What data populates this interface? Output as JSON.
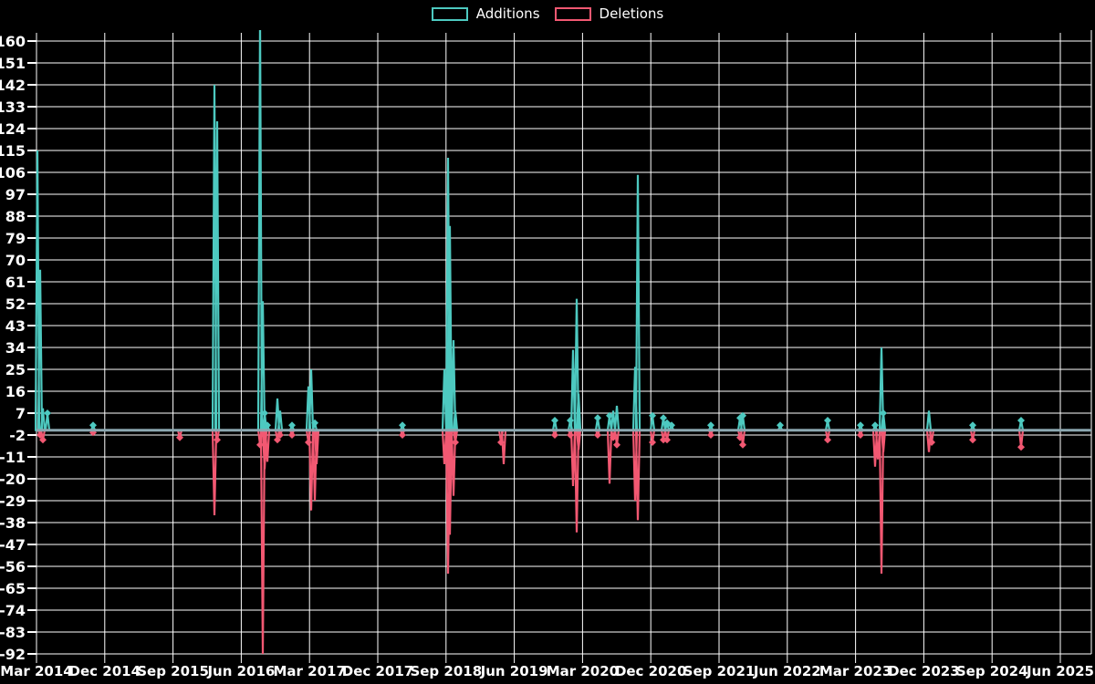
{
  "chart_data": {
    "type": "line",
    "title": "",
    "legend_position": "top-center",
    "grid": true,
    "background": "#000000",
    "colors": {
      "additions": "#4dc9c0",
      "deletions": "#f25872",
      "gridline": "#ffffff",
      "zero_line": "#8ca7b0",
      "text": "#ffffff"
    },
    "legend": [
      {
        "label": "Additions",
        "color": "#4dc9c0"
      },
      {
        "label": "Deletions",
        "color": "#f25872"
      }
    ],
    "xlabel": "",
    "ylabel": "",
    "ylim": [
      -92,
      164
    ],
    "yticks": [
      160,
      151,
      142,
      133,
      124,
      115,
      106,
      97,
      88,
      79,
      70,
      61,
      52,
      43,
      34,
      25,
      16,
      7,
      -2,
      -11,
      -20,
      -29,
      -38,
      -47,
      -56,
      -65,
      -74,
      -83,
      -92
    ],
    "xlabels": [
      "Mar 2014",
      "Dec 2014",
      "Sep 2015",
      "Jun 2016",
      "Mar 2017",
      "Dec 2017",
      "Sep 2018",
      "Jun 2019",
      "Mar 2020",
      "Dec 2020",
      "Sep 2021",
      "Jun 2022",
      "Mar 2023",
      "Dec 2023",
      "Sep 2024",
      "Jun 2025"
    ],
    "series": [
      {
        "name": "Additions",
        "color": "#4dc9c0",
        "values_note": "weekly additions; clipped spike ~170 exceeds axis top",
        "points": [
          {
            "date": "Mar 2014",
            "x": 41,
            "y": 115
          },
          {
            "date": "Apr 2014",
            "x": 44,
            "y": 66
          },
          {
            "date": "Apr 2014",
            "x": 47,
            "y": 9
          },
          {
            "date": "May 2014",
            "x": 52,
            "y": 7
          },
          {
            "date": "Nov 2014",
            "x": 102,
            "y": 2
          },
          {
            "date": "Oct 2015",
            "x": 197,
            "y": 0
          },
          {
            "date": "Mar 2016",
            "x": 235,
            "y": 142
          },
          {
            "date": "Mar 2016",
            "x": 238,
            "y": 127
          },
          {
            "date": "Sep 2016",
            "x": 285,
            "y": 170
          },
          {
            "date": "Sep 2016",
            "x": 288,
            "y": 53
          },
          {
            "date": "Oct 2016",
            "x": 290,
            "y": 7
          },
          {
            "date": "Oct 2016",
            "x": 293,
            "y": 2
          },
          {
            "date": "Nov 2016",
            "x": 304,
            "y": 13
          },
          {
            "date": "Nov 2016",
            "x": 307,
            "y": 8
          },
          {
            "date": "Jan 2017",
            "x": 320,
            "y": 2
          },
          {
            "date": "Feb 2017",
            "x": 338,
            "y": 18
          },
          {
            "date": "Mar 2017",
            "x": 341,
            "y": 25
          },
          {
            "date": "Mar 2017",
            "x": 345,
            "y": 3
          },
          {
            "date": "Feb 2018",
            "x": 441,
            "y": 2
          },
          {
            "date": "Aug 2018",
            "x": 487,
            "y": 25
          },
          {
            "date": "Sep 2018",
            "x": 491,
            "y": 112
          },
          {
            "date": "Sep 2018",
            "x": 493,
            "y": 84
          },
          {
            "date": "Sep 2018",
            "x": 497,
            "y": 37
          },
          {
            "date": "Oct 2018",
            "x": 499,
            "y": 8
          },
          {
            "date": "Nov 2019",
            "x": 608,
            "y": 4
          },
          {
            "date": "Feb 2020",
            "x": 625,
            "y": 4
          },
          {
            "date": "Feb 2020",
            "x": 628,
            "y": 33
          },
          {
            "date": "Mar 2020",
            "x": 632,
            "y": 54
          },
          {
            "date": "Mar 2020",
            "x": 634,
            "y": 15
          },
          {
            "date": "May 2020",
            "x": 655,
            "y": 5
          },
          {
            "date": "Jul 2020",
            "x": 668,
            "y": 6
          },
          {
            "date": "Jul 2020",
            "x": 672,
            "y": 8
          },
          {
            "date": "Jul 2020",
            "x": 676,
            "y": 10
          },
          {
            "date": "Oct 2020",
            "x": 696,
            "y": 26
          },
          {
            "date": "Oct 2020",
            "x": 699,
            "y": 105
          },
          {
            "date": "Dec 2020",
            "x": 715,
            "y": 6
          },
          {
            "date": "Jan 2021",
            "x": 727,
            "y": 5
          },
          {
            "date": "Feb 2021",
            "x": 731,
            "y": 3
          },
          {
            "date": "Feb 2021",
            "x": 736,
            "y": 2
          },
          {
            "date": "Jul 2021",
            "x": 779,
            "y": 2
          },
          {
            "date": "Oct 2021",
            "x": 811,
            "y": 5
          },
          {
            "date": "Nov 2021",
            "x": 814,
            "y": 6
          },
          {
            "date": "Jun 2022",
            "x": 855,
            "y": 2
          },
          {
            "date": "Nov 2022",
            "x": 907,
            "y": 4
          },
          {
            "date": "Apr 2023",
            "x": 943,
            "y": 2
          },
          {
            "date": "May 2023",
            "x": 959,
            "y": 2
          },
          {
            "date": "Jun 2023",
            "x": 966,
            "y": 34
          },
          {
            "date": "Jun 2023",
            "x": 968,
            "y": 7
          },
          {
            "date": "Jan 2024",
            "x": 1018,
            "y": 8
          },
          {
            "date": "Jul 2024",
            "x": 1066,
            "y": 2
          },
          {
            "date": "Jan 2025",
            "x": 1119,
            "y": 4
          }
        ]
      },
      {
        "name": "Deletions",
        "color": "#f25872",
        "values_note": "weekly deletions (negative)",
        "points": [
          {
            "date": "Apr 2014",
            "x": 44,
            "y": -2
          },
          {
            "date": "Apr 2014",
            "x": 47,
            "y": -4
          },
          {
            "date": "Nov 2014",
            "x": 102,
            "y": -1
          },
          {
            "date": "Oct 2015",
            "x": 197,
            "y": -3
          },
          {
            "date": "Mar 2016",
            "x": 235,
            "y": -35
          },
          {
            "date": "Mar 2016",
            "x": 238,
            "y": -4
          },
          {
            "date": "Sep 2016",
            "x": 285,
            "y": -6
          },
          {
            "date": "Sep 2016",
            "x": 288,
            "y": -92
          },
          {
            "date": "Oct 2016",
            "x": 290,
            "y": -16
          },
          {
            "date": "Oct 2016",
            "x": 293,
            "y": -13
          },
          {
            "date": "Nov 2016",
            "x": 304,
            "y": -4
          },
          {
            "date": "Nov 2016",
            "x": 307,
            "y": -2
          },
          {
            "date": "Jan 2017",
            "x": 320,
            "y": -2
          },
          {
            "date": "Feb 2017",
            "x": 338,
            "y": -5
          },
          {
            "date": "Mar 2017",
            "x": 341,
            "y": -33
          },
          {
            "date": "Mar 2017",
            "x": 345,
            "y": -29
          },
          {
            "date": "Mar 2017",
            "x": 347,
            "y": -14
          },
          {
            "date": "Feb 2018",
            "x": 441,
            "y": -2
          },
          {
            "date": "Aug 2018",
            "x": 487,
            "y": -14
          },
          {
            "date": "Sep 2018",
            "x": 491,
            "y": -59
          },
          {
            "date": "Sep 2018",
            "x": 493,
            "y": -43
          },
          {
            "date": "Sep 2018",
            "x": 497,
            "y": -27
          },
          {
            "date": "Oct 2018",
            "x": 499,
            "y": -5
          },
          {
            "date": "Apr 2019",
            "x": 549,
            "y": -5
          },
          {
            "date": "Apr 2019",
            "x": 552,
            "y": -14
          },
          {
            "date": "Nov 2019",
            "x": 608,
            "y": -2
          },
          {
            "date": "Feb 2020",
            "x": 625,
            "y": -2
          },
          {
            "date": "Feb 2020",
            "x": 628,
            "y": -23
          },
          {
            "date": "Mar 2020",
            "x": 632,
            "y": -42
          },
          {
            "date": "Mar 2020",
            "x": 634,
            "y": -8
          },
          {
            "date": "May 2020",
            "x": 655,
            "y": -2
          },
          {
            "date": "Jul 2020",
            "x": 668,
            "y": -22
          },
          {
            "date": "Jul 2020",
            "x": 672,
            "y": -3
          },
          {
            "date": "Jul 2020",
            "x": 676,
            "y": -6
          },
          {
            "date": "Oct 2020",
            "x": 696,
            "y": -29
          },
          {
            "date": "Oct 2020",
            "x": 699,
            "y": -37
          },
          {
            "date": "Dec 2020",
            "x": 715,
            "y": -5
          },
          {
            "date": "Jan 2021",
            "x": 727,
            "y": -4
          },
          {
            "date": "Feb 2021",
            "x": 731,
            "y": -4
          },
          {
            "date": "Jul 2021",
            "x": 779,
            "y": -2
          },
          {
            "date": "Oct 2021",
            "x": 811,
            "y": -3
          },
          {
            "date": "Nov 2021",
            "x": 814,
            "y": -6
          },
          {
            "date": "Nov 2022",
            "x": 907,
            "y": -4
          },
          {
            "date": "Apr 2023",
            "x": 943,
            "y": -2
          },
          {
            "date": "May 2023",
            "x": 959,
            "y": -15
          },
          {
            "date": "May 2023",
            "x": 962,
            "y": -12
          },
          {
            "date": "Jun 2023",
            "x": 966,
            "y": -59
          },
          {
            "date": "Jun 2023",
            "x": 968,
            "y": -9
          },
          {
            "date": "Jan 2024",
            "x": 1018,
            "y": -9
          },
          {
            "date": "Jan 2024",
            "x": 1021,
            "y": -5
          },
          {
            "date": "Jul 2024",
            "x": 1066,
            "y": -4
          },
          {
            "date": "Jan 2025",
            "x": 1119,
            "y": -7
          }
        ]
      }
    ]
  }
}
